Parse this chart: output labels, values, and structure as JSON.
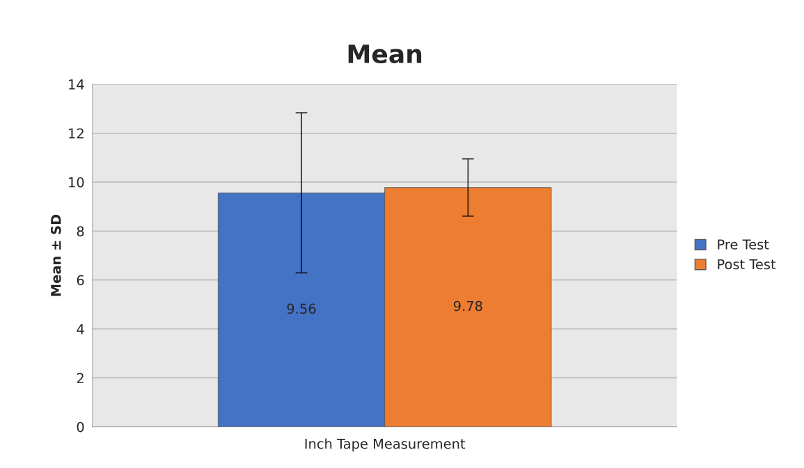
{
  "chart_data": {
    "type": "bar",
    "title": "Mean",
    "ylabel": "Mean ± SD",
    "categories": [
      "Inch Tape Measurement"
    ],
    "series": [
      {
        "name": "Pre Test",
        "color": "#4472c4",
        "values": [
          9.56
        ],
        "errors": [
          3.27
        ]
      },
      {
        "name": "Post Test",
        "color": "#ed7d31",
        "values": [
          9.78
        ],
        "errors": [
          1.17
        ]
      }
    ],
    "ylim": [
      0,
      14
    ],
    "yticks": [
      0,
      2,
      4,
      6,
      8,
      10,
      12,
      14
    ],
    "grid": "y",
    "legend": "right",
    "data_labels": true
  }
}
